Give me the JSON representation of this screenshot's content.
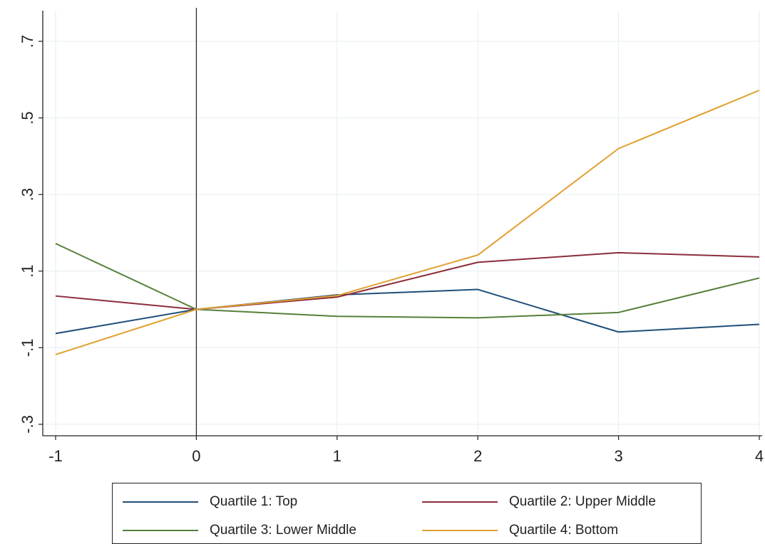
{
  "chart_data": {
    "type": "line",
    "title": "",
    "xlabel": "",
    "ylabel": "",
    "x": [
      -1,
      0,
      1,
      2,
      3,
      4
    ],
    "xticks": [
      "-1",
      "0",
      "1",
      "2",
      "3",
      "4"
    ],
    "yticks": [
      {
        "value": -0.3,
        "label": "-.3"
      },
      {
        "value": -0.1,
        "label": "-.1"
      },
      {
        "value": 0.1,
        "label": ".1"
      },
      {
        "value": 0.3,
        "label": ".3"
      },
      {
        "value": 0.5,
        "label": ".5"
      },
      {
        "value": 0.7,
        "label": ".7"
      }
    ],
    "xlim": [
      -1,
      4
    ],
    "ylim": [
      -0.33,
      0.78
    ],
    "grid": true,
    "reference_line_x": 0,
    "legend_position": "bottom",
    "series": [
      {
        "name": "Quartile 1: Top",
        "color": "#1f4e79",
        "values": [
          -0.063,
          0.0,
          0.038,
          0.052,
          -0.059,
          -0.039
        ]
      },
      {
        "name": "Quartile 2: Upper Middle",
        "color": "#8c2d3b",
        "values": [
          0.035,
          0.0,
          0.032,
          0.123,
          0.148,
          0.137
        ]
      },
      {
        "name": "Quartile 3: Lower Middle",
        "color": "#55803a",
        "values": [
          0.172,
          0.0,
          -0.018,
          -0.022,
          -0.008,
          0.082
        ]
      },
      {
        "name": "Quartile 4: Bottom",
        "color": "#e0a030",
        "values": [
          -0.118,
          0.0,
          0.036,
          0.142,
          0.42,
          0.572
        ]
      }
    ]
  }
}
